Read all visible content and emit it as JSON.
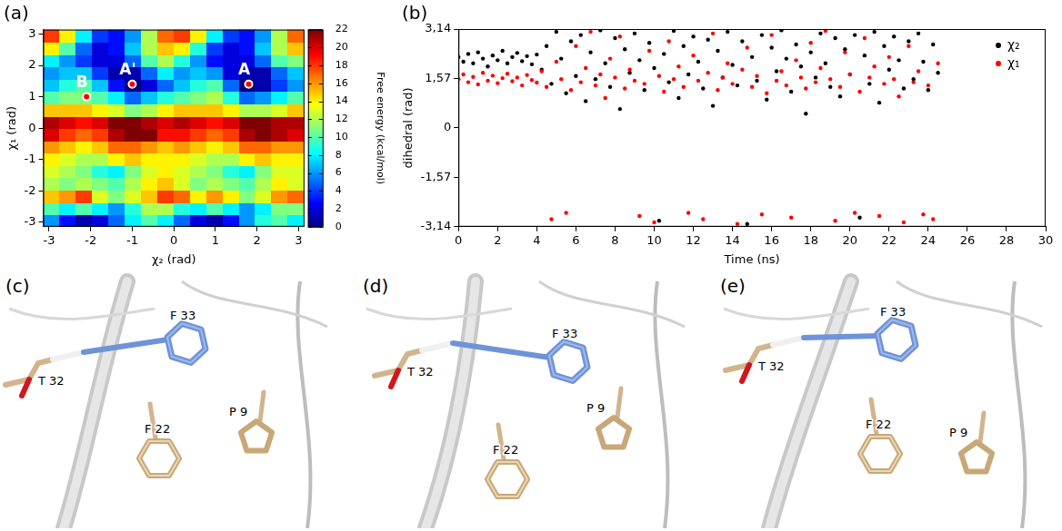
{
  "chart_data": [
    {
      "panel": "(a)",
      "type": "heatmap",
      "x_label": "χ₂ (rad)",
      "y_label": "χ₁ (rad)",
      "xlim": [
        -3.14,
        3.14
      ],
      "ylim": [
        -3.14,
        3.14
      ],
      "xticks": [
        -3,
        -2,
        -1,
        0,
        1,
        2,
        3
      ],
      "yticks": [
        -3,
        -2,
        -1,
        0,
        1,
        2,
        3
      ],
      "x": [
        -2.945,
        -2.553,
        -2.16,
        -1.767,
        -1.374,
        -0.982,
        -0.589,
        -0.196,
        0.196,
        0.589,
        0.982,
        1.374,
        1.767,
        2.16,
        2.553,
        2.945
      ],
      "y": [
        -2.945,
        -2.553,
        -2.16,
        -1.767,
        -1.374,
        -0.982,
        -0.589,
        -0.196,
        0.196,
        0.589,
        0.982,
        1.374,
        1.767,
        2.16,
        2.553,
        2.945
      ],
      "z": [
        [
          6,
          3,
          1,
          2,
          5,
          8,
          10,
          8,
          5,
          2,
          1,
          3,
          6,
          9,
          10,
          8
        ],
        [
          10,
          8,
          10,
          8,
          6,
          9,
          12,
          12,
          9,
          8,
          10,
          8,
          6,
          8,
          11,
          11
        ],
        [
          15,
          16,
          18,
          13,
          11,
          13,
          15,
          18,
          17,
          14,
          16,
          14,
          11,
          13,
          16,
          17
        ],
        [
          12,
          11,
          12,
          11,
          10,
          12,
          14,
          15,
          13,
          11,
          12,
          11,
          10,
          12,
          14,
          13
        ],
        [
          13,
          12,
          11,
          9,
          8,
          11,
          13,
          14,
          13,
          12,
          11,
          9,
          8,
          11,
          13,
          13
        ],
        [
          14,
          13,
          12,
          12,
          14,
          15,
          14,
          14,
          14,
          13,
          12,
          12,
          14,
          15,
          14,
          14
        ],
        [
          16,
          15,
          14,
          15,
          17,
          17,
          16,
          15,
          16,
          15,
          14,
          15,
          17,
          17,
          16,
          16
        ],
        [
          20,
          18,
          17,
          18,
          21,
          22,
          22,
          19,
          19,
          18,
          17,
          18,
          21,
          22,
          21,
          20
        ],
        [
          21,
          20,
          19,
          20,
          22,
          22,
          21,
          20,
          21,
          20,
          19,
          20,
          22,
          22,
          21,
          21
        ],
        [
          15,
          15,
          15,
          14,
          13,
          11,
          12,
          14,
          15,
          15,
          15,
          14,
          12,
          12,
          13,
          15
        ],
        [
          10,
          11,
          11,
          10,
          8,
          5,
          7,
          9,
          10,
          11,
          12,
          9,
          5,
          6,
          8,
          10
        ],
        [
          7,
          9,
          10,
          7,
          3,
          0,
          2,
          5,
          7,
          9,
          10,
          5,
          0,
          1,
          4,
          6
        ],
        [
          6,
          7,
          7,
          4,
          1,
          1,
          5,
          8,
          6,
          7,
          6,
          2,
          1,
          1,
          5,
          7
        ],
        [
          8,
          6,
          4,
          2,
          2,
          5,
          10,
          12,
          9,
          6,
          3,
          2,
          2,
          5,
          10,
          11
        ],
        [
          14,
          10,
          5,
          2,
          3,
          7,
          12,
          15,
          14,
          9,
          4,
          2,
          3,
          7,
          12,
          15
        ],
        [
          18,
          14,
          8,
          4,
          3,
          6,
          12,
          17,
          18,
          14,
          8,
          4,
          3,
          6,
          12,
          17
        ]
      ],
      "colorbar": {
        "label": "Free energy (kcal/mol)",
        "range": [
          0,
          22
        ],
        "ticks": [
          0,
          2,
          4,
          6,
          8,
          10,
          12,
          14,
          16,
          18,
          20,
          22
        ]
      },
      "annotations": [
        {
          "text": "A'",
          "x": -1.0,
          "y": 1.4
        },
        {
          "text": "A",
          "x": 1.8,
          "y": 1.4
        },
        {
          "text": "B",
          "x": -2.1,
          "y": 1.0
        }
      ]
    },
    {
      "panel": "(b)",
      "type": "scatter",
      "x_label": "Time (ns)",
      "y_label": "dihedral (rad)",
      "xlim": [
        0,
        30
      ],
      "ylim": [
        -3.14,
        3.14
      ],
      "xticks": [
        0,
        2,
        4,
        6,
        8,
        10,
        12,
        14,
        16,
        18,
        20,
        22,
        24,
        26,
        28,
        30
      ],
      "yticks": [
        {
          "value": -3.14,
          "label": "-3,14"
        },
        {
          "value": -1.57,
          "label": "-1,57"
        },
        0,
        {
          "value": 1.57,
          "label": "1,57"
        },
        {
          "value": 3.14,
          "label": "3,14"
        }
      ],
      "legend": "upper right",
      "x": [
        0,
        0.25,
        0.5,
        0.75,
        1,
        1.25,
        1.5,
        1.75,
        2,
        2.25,
        2.5,
        2.75,
        3,
        3.25,
        3.5,
        3.75,
        4,
        4.25,
        4.5,
        4.75,
        5,
        5.25,
        5.5,
        5.75,
        6,
        6.25,
        6.5,
        6.75,
        7,
        7.25,
        7.5,
        7.75,
        8,
        8.25,
        8.5,
        8.75,
        9,
        9.25,
        9.5,
        9.75,
        10,
        10.25,
        10.5,
        10.75,
        11,
        11.25,
        11.5,
        11.75,
        12,
        12.25,
        12.5,
        12.75,
        13,
        13.25,
        13.5,
        13.75,
        14,
        14.25,
        14.5,
        14.75,
        15,
        15.25,
        15.5,
        15.75,
        16,
        16.25,
        16.5,
        16.75,
        17,
        17.25,
        17.5,
        17.75,
        18,
        18.25,
        18.5,
        18.75,
        19,
        19.25,
        19.5,
        19.75,
        20,
        20.25,
        20.5,
        20.75,
        21,
        21.25,
        21.5,
        21.75,
        22,
        22.25,
        22.5,
        22.75,
        23,
        23.25,
        23.5,
        23.75,
        24,
        24.25,
        24.5
      ],
      "series": [
        {
          "name": "χ₂",
          "color": "#000000",
          "values": [
            2.25,
            2.1,
            2.35,
            2.05,
            2.4,
            2.2,
            1.95,
            2.3,
            2.15,
            2.45,
            2.05,
            2.25,
            2.38,
            2.12,
            2.28,
            2.02,
            2.33,
            1.85,
            2.6,
            1.4,
            3.05,
            2.2,
            1.1,
            2.75,
            1.65,
            2.95,
            0.85,
            2.4,
            1.55,
            3.1,
            2.05,
            1.3,
            2.85,
            0.6,
            2.5,
            1.75,
            3.0,
            2.15,
            1.2,
            2.7,
            1.9,
            -2.95,
            2.35,
            1.45,
            3.08,
            0.95,
            2.6,
            1.7,
            2.9,
            2.1,
            1.25,
            2.8,
            0.7,
            2.45,
            1.6,
            3.05,
            2.0,
            1.35,
            2.75,
            -3.05,
            2.25,
            1.5,
            2.95,
            0.9,
            2.55,
            1.8,
            3.1,
            2.2,
            1.15,
            2.65,
            1.95,
            0.45,
            2.4,
            1.6,
            3.0,
            2.05,
            1.3,
            2.85,
            1.0,
            2.5,
            1.7,
            2.95,
            -2.85,
            2.3,
            1.4,
            3.05,
            0.8,
            2.6,
            1.85,
            2.9,
            2.15,
            1.25,
            2.75,
            1.55,
            3.0,
            2.1,
            1.2,
            2.65,
            1.75
          ]
        },
        {
          "name": "χ₁",
          "color": "#ff0000",
          "values": [
            1.55,
            1.7,
            1.45,
            1.62,
            1.38,
            1.75,
            1.5,
            1.66,
            1.42,
            1.58,
            1.72,
            1.48,
            1.6,
            1.35,
            1.68,
            1.52,
            1.44,
            1.8,
            1.3,
            -2.9,
            2.1,
            1.55,
            -2.7,
            1.2,
            2.6,
            1.45,
            1.9,
            3.05,
            1.35,
            1.7,
            0.95,
            2.2,
            1.6,
            2.9,
            1.25,
            1.85,
            1.5,
            -2.8,
            1.4,
            2.45,
            -3.0,
            1.65,
            1.15,
            2.75,
            1.55,
            1.95,
            1.3,
            -2.7,
            2.3,
            1.5,
            -2.9,
            1.75,
            3.0,
            1.2,
            1.6,
            2.05,
            1.4,
            -3.05,
            1.85,
            2.55,
            1.3,
            1.65,
            -2.75,
            1.1,
            2.95,
            1.5,
            1.8,
            1.35,
            -2.85,
            2.15,
            1.6,
            1.25,
            2.7,
            1.45,
            1.9,
            3.08,
            1.55,
            -2.95,
            1.3,
            2.4,
            1.7,
            -2.7,
            1.15,
            2.85,
            1.6,
            1.95,
            -2.8,
            1.4,
            2.25,
            1.55,
            1.0,
            -3.0,
            2.6,
            1.45,
            1.8,
            -2.75,
            1.35,
            -2.9,
            2.05
          ]
        }
      ]
    }
  ],
  "structures": [
    {
      "panel": "(c)",
      "residues": [
        "T 32",
        "F 33",
        "F 22",
        "P 9"
      ]
    },
    {
      "panel": "(d)",
      "residues": [
        "T 32",
        "F 33",
        "F 22",
        "P 9"
      ]
    },
    {
      "panel": "(e)",
      "residues": [
        "T 32",
        "F 33",
        "F 22",
        "P 9"
      ]
    }
  ]
}
